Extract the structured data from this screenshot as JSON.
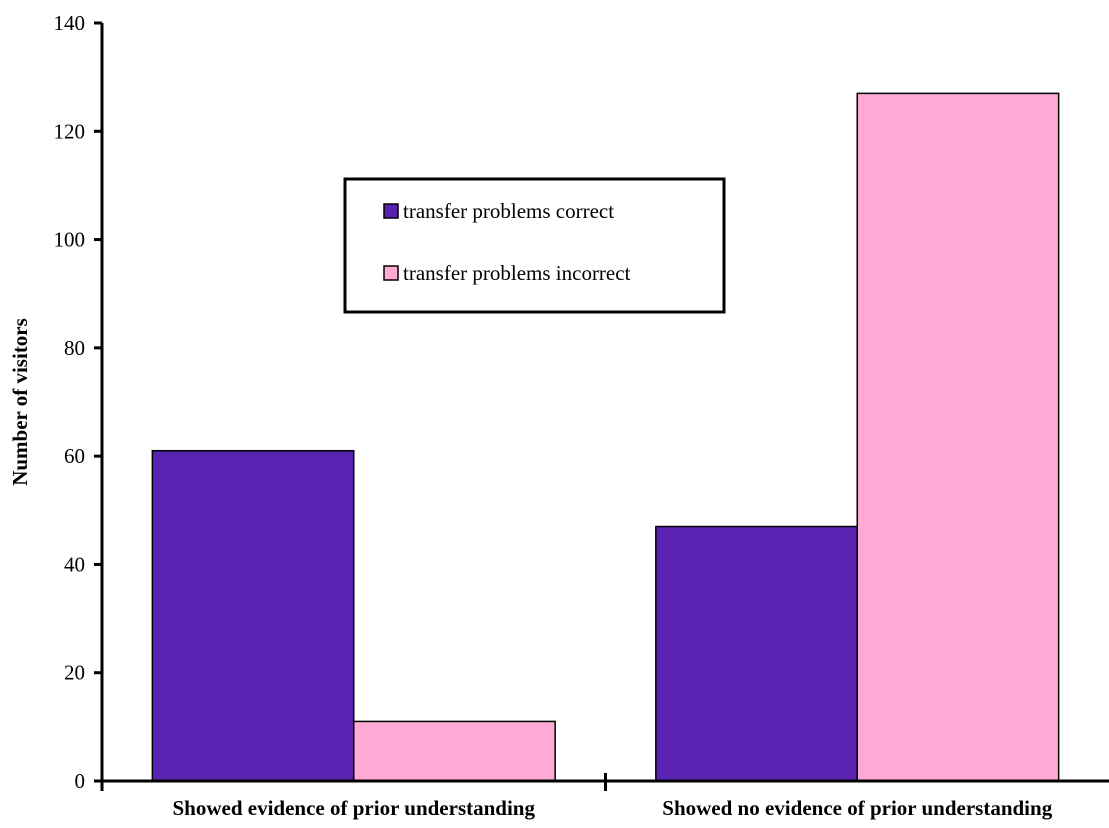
{
  "chart_data": {
    "type": "bar",
    "title": "",
    "xlabel": "",
    "ylabel": "Number of visitors",
    "ylim": [
      0,
      140
    ],
    "yticks": [
      0,
      20,
      40,
      60,
      80,
      100,
      120,
      140
    ],
    "categories": [
      "Showed evidence of prior understanding",
      "Showed no evidence of prior understanding"
    ],
    "series": [
      {
        "name": "transfer problems correct",
        "color": "#5a22b0",
        "values": [
          61,
          47
        ]
      },
      {
        "name": "transfer problems incorrect",
        "color": "#ffaad4",
        "values": [
          11,
          127
        ]
      }
    ],
    "legend": {
      "position": "top-center",
      "border": true
    },
    "grid": false
  }
}
